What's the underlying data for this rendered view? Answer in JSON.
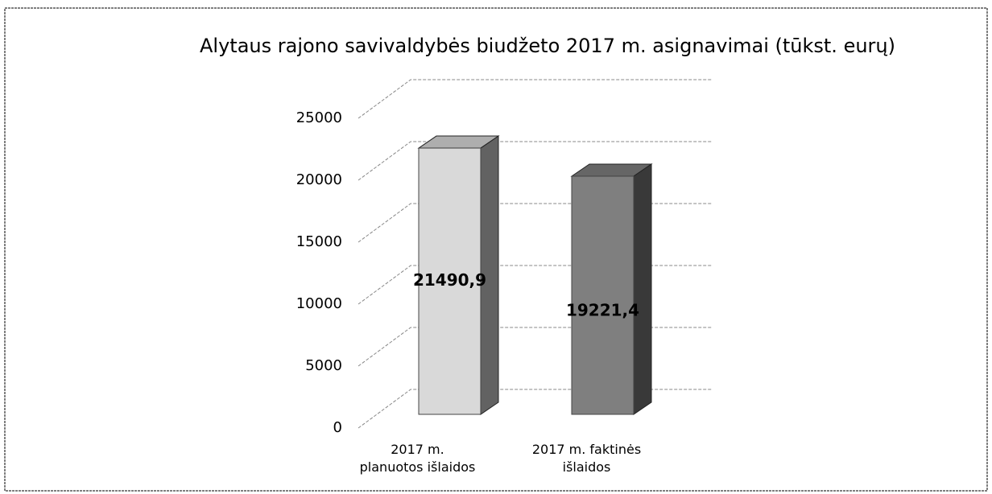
{
  "chart_data": {
    "type": "bar3d",
    "title": "Alytaus rajono savivaldybės biudžeto 2017 m. asignavimai (tūkst. eurų)",
    "categories": [
      "2017 m. planuotos išlaidos",
      "2017 m. faktinės išlaidos"
    ],
    "values": [
      21490.9,
      19221.4
    ],
    "value_labels": [
      "21490,9",
      "19221,4"
    ],
    "colors": [
      "#d9d9d9",
      "#7f7f7f"
    ],
    "ylim": [
      0,
      25000
    ],
    "yticks": [
      0,
      5000,
      10000,
      15000,
      20000,
      25000
    ],
    "grid": true
  }
}
